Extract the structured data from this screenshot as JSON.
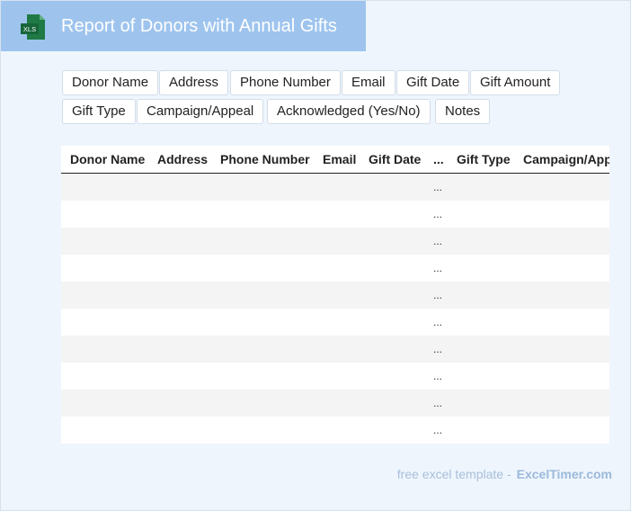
{
  "header": {
    "title": "Report of Donors with Annual Gifts",
    "icon": "xls-file-icon",
    "icon_label": "XLS",
    "background": "#9ec4ee"
  },
  "fields": [
    "Donor Name",
    "Address",
    "Phone Number",
    "Email",
    "Gift Date",
    "Gift Amount",
    "Gift Type",
    "Campaign/Appeal",
    "Acknowledged (Yes/No)",
    "Notes"
  ],
  "table": {
    "columns": [
      "Donor Name",
      "Address",
      "Phone Number",
      "Email",
      "Gift Date",
      "...",
      "Gift Type",
      "Campaign/App"
    ],
    "rows": [
      "...",
      "...",
      "...",
      "...",
      "...",
      "...",
      "...",
      "...",
      "...",
      "..."
    ]
  },
  "footer": {
    "text": "free excel template -",
    "brand": "ExcelTimer.com"
  }
}
